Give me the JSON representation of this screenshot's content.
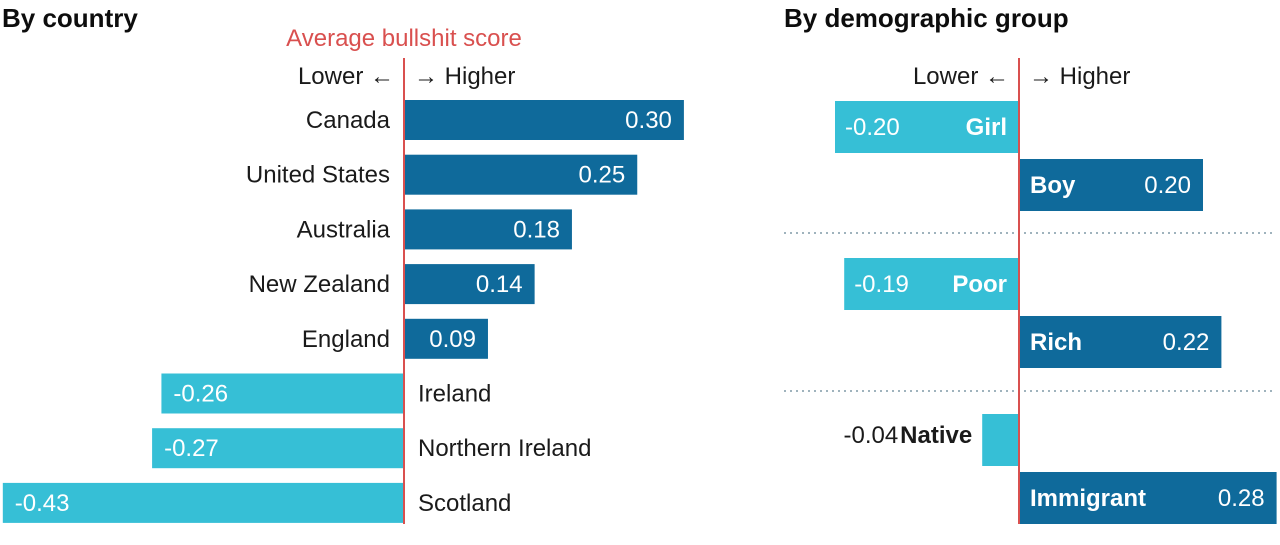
{
  "chart_data": [
    {
      "type": "bar",
      "orientation": "horizontal",
      "title": "By country",
      "subtitle": "Average bullshit score",
      "direction_labels": {
        "lower": "Lower ←",
        "higher": "→ Higher"
      },
      "categories": [
        "Canada",
        "United States",
        "Australia",
        "New Zealand",
        "England",
        "Ireland",
        "Northern Ireland",
        "Scotland"
      ],
      "values": [
        0.3,
        0.25,
        0.18,
        0.14,
        0.09,
        -0.26,
        -0.27,
        -0.43
      ],
      "value_labels": [
        "0.30",
        "0.25",
        "0.18",
        "0.14",
        "0.09",
        "-0.26",
        "-0.27",
        "-0.43"
      ],
      "colors": {
        "positive": "#0f6a9b",
        "negative": "#36bfd6",
        "zero_line": "#d9504f"
      }
    },
    {
      "type": "bar",
      "orientation": "horizontal",
      "title": "By demographic group",
      "direction_labels": {
        "lower": "Lower ←",
        "higher": "→ Higher"
      },
      "categories": [
        "Girl",
        "Boy",
        "Poor",
        "Rich",
        "Native",
        "Immigrant"
      ],
      "values": [
        -0.2,
        0.2,
        -0.19,
        0.22,
        -0.04,
        0.28
      ],
      "value_labels": [
        "-0.20",
        "0.20",
        "-0.19",
        "0.22",
        "-0.04",
        "0.28"
      ],
      "groups": [
        [
          "Girl",
          "Boy"
        ],
        [
          "Poor",
          "Rich"
        ],
        [
          "Native",
          "Immigrant"
        ]
      ],
      "colors": {
        "positive": "#0f6a9b",
        "negative": "#36bfd6",
        "zero_line": "#d9504f",
        "separator": "#9fb3bd"
      }
    }
  ]
}
